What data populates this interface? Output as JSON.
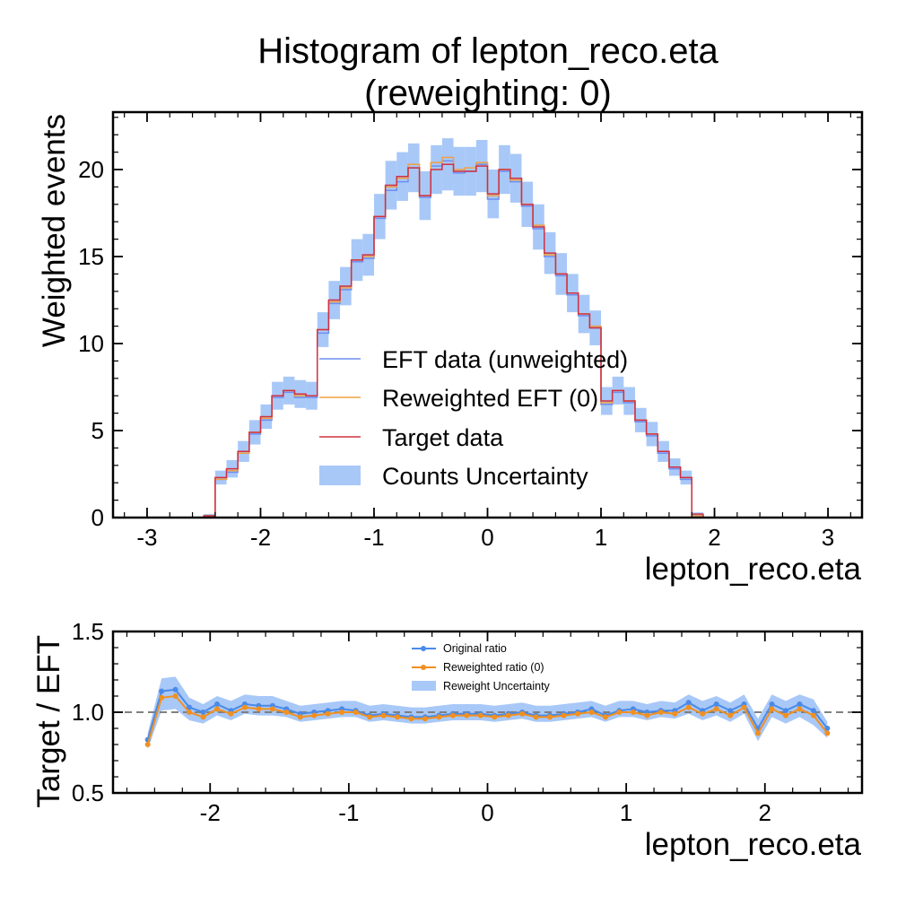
{
  "chart_data": [
    {
      "type": "histogram",
      "title": "Histogram of lepton_reco.eta",
      "subtitle": "(reweighting: 0)",
      "xlabel": "lepton_reco.eta",
      "ylabel": "Weighted events",
      "xlim": [
        -3.3,
        3.3
      ],
      "ylim": [
        0,
        23.3
      ],
      "xticks": [
        -3,
        -2,
        -1,
        0,
        1,
        2,
        3
      ],
      "yticks": [
        0,
        5,
        10,
        15,
        20
      ],
      "tick_labels_x": [
        "-3",
        "-2",
        "-1",
        "0",
        "1",
        "2",
        "3"
      ],
      "tick_labels_y": [
        "0",
        "5",
        "10",
        "15",
        "20"
      ],
      "bin_edges": [
        -2.5,
        -2.4,
        -2.3,
        -2.2,
        -2.1,
        -2.0,
        -1.9,
        -1.8,
        -1.7,
        -1.6,
        -1.5,
        -1.4,
        -1.3,
        -1.2,
        -1.1,
        -1.0,
        -0.9,
        -0.8,
        -0.7,
        -0.6,
        -0.5,
        -0.4,
        -0.3,
        -0.2,
        -0.1,
        0.0,
        0.1,
        0.2,
        0.3,
        0.4,
        0.5,
        0.6,
        0.7,
        0.8,
        0.9,
        1.0,
        1.1,
        1.2,
        1.3,
        1.4,
        1.5,
        1.6,
        1.7,
        1.8,
        1.9,
        2.0,
        2.1,
        2.2,
        2.3,
        2.4,
        2.5
      ],
      "series": [
        {
          "name": "EFT data (unweighted)",
          "color": "#6f8ef0",
          "values": [
            0.1,
            2.2,
            2.6,
            3.7,
            4.8,
            5.6,
            6.9,
            7.2,
            6.9,
            6.9,
            10.6,
            12.3,
            13.1,
            14.7,
            14.9,
            17.2,
            18.8,
            19.3,
            20.1,
            18.4,
            20.2,
            20.5,
            19.8,
            19.9,
            20.3,
            18.3,
            19.9,
            19.3,
            17.9,
            16.6,
            15.0,
            13.9,
            12.8,
            11.6,
            10.9,
            6.5,
            7.2,
            6.6,
            5.5,
            4.7,
            3.7,
            2.8,
            2.2,
            0.1,
            0.0,
            0.0,
            0.0,
            0.0,
            0.0,
            0.0
          ]
        },
        {
          "name": "Reweighted EFT (0)",
          "color": "#f0a040",
          "values": [
            0.1,
            2.2,
            2.7,
            3.7,
            4.9,
            5.7,
            7.0,
            7.3,
            7.0,
            7.0,
            10.8,
            12.4,
            13.2,
            14.8,
            15.0,
            17.3,
            19.0,
            19.5,
            20.3,
            18.5,
            20.4,
            20.7,
            20.0,
            20.1,
            20.4,
            18.5,
            20.0,
            19.4,
            18.0,
            16.8,
            15.1,
            14.0,
            12.9,
            11.7,
            11.0,
            6.6,
            7.3,
            6.7,
            5.6,
            4.8,
            3.8,
            2.9,
            2.3,
            0.1,
            0.0,
            0.0,
            0.0,
            0.0,
            0.0,
            0.0
          ]
        },
        {
          "name": "Target data",
          "color": "#d03040",
          "values": [
            0.1,
            2.3,
            2.8,
            3.8,
            4.9,
            5.8,
            7.0,
            7.3,
            7.1,
            7.0,
            10.8,
            12.5,
            13.3,
            14.8,
            15.1,
            17.3,
            19.1,
            19.6,
            20.1,
            18.5,
            20.0,
            20.3,
            19.9,
            19.9,
            20.2,
            18.6,
            20.0,
            19.5,
            18.0,
            16.7,
            15.2,
            14.0,
            12.9,
            11.7,
            10.9,
            6.7,
            7.3,
            6.7,
            5.6,
            4.8,
            3.8,
            2.9,
            2.3,
            0.2,
            0.0,
            0.0,
            0.0,
            0.0,
            0.0,
            0.0
          ]
        }
      ],
      "uncertainty_band": {
        "name": "Counts Uncertainty",
        "color": "#a8c8f8",
        "half_width": [
          0.1,
          0.4,
          0.5,
          0.6,
          0.7,
          0.7,
          0.8,
          0.8,
          0.8,
          0.8,
          1.0,
          1.1,
          1.1,
          1.2,
          1.2,
          1.3,
          1.4,
          1.4,
          1.4,
          1.4,
          1.4,
          1.5,
          1.4,
          1.4,
          1.5,
          1.4,
          1.4,
          1.4,
          1.3,
          1.3,
          1.2,
          1.2,
          1.1,
          1.1,
          1.0,
          0.8,
          0.8,
          0.8,
          0.7,
          0.7,
          0.6,
          0.5,
          0.4,
          0.1,
          0.0,
          0.0,
          0.0,
          0.0,
          0.0,
          0.0
        ]
      },
      "legend": [
        "EFT data (unweighted)",
        "Reweighted EFT (0)",
        "Target data",
        "Counts Uncertainty"
      ],
      "legend_placement": "center-bottom"
    },
    {
      "type": "line",
      "title": "",
      "xlabel": "lepton_reco.eta",
      "ylabel": "Target / EFT",
      "xlim": [
        -2.7,
        2.7
      ],
      "ylim": [
        0.5,
        1.5
      ],
      "xticks": [
        -2,
        -1,
        0,
        1,
        2
      ],
      "yticks": [
        0.5,
        1.0,
        1.5
      ],
      "tick_labels_x": [
        "-2",
        "-1",
        "0",
        "1",
        "2"
      ],
      "tick_labels_y": [
        "0.5",
        "1.0",
        "1.5"
      ],
      "reference_line": 1.0,
      "x": [
        -2.45,
        -2.35,
        -2.25,
        -2.15,
        -2.05,
        -1.95,
        -1.85,
        -1.75,
        -1.65,
        -1.55,
        -1.45,
        -1.35,
        -1.25,
        -1.15,
        -1.05,
        -0.95,
        -0.85,
        -0.75,
        -0.65,
        -0.55,
        -0.45,
        -0.35,
        -0.25,
        -0.15,
        -0.05,
        0.05,
        0.15,
        0.25,
        0.35,
        0.45,
        0.55,
        0.65,
        0.75,
        0.85,
        0.95,
        1.05,
        1.15,
        1.25,
        1.35,
        1.45,
        1.55,
        1.65,
        1.75,
        1.85,
        1.95,
        2.05,
        2.15,
        2.25,
        2.35,
        2.45
      ],
      "series": [
        {
          "name": "Original ratio",
          "color": "#4a8ae8",
          "values": [
            0.83,
            1.13,
            1.14,
            1.03,
            1.0,
            1.05,
            1.01,
            1.05,
            1.04,
            1.04,
            1.02,
            0.99,
            1.0,
            1.01,
            1.02,
            1.01,
            0.98,
            0.99,
            0.98,
            0.97,
            0.97,
            0.98,
            0.99,
            0.99,
            0.99,
            0.98,
            0.99,
            1.0,
            0.98,
            0.98,
            0.99,
            1.0,
            1.02,
            0.98,
            1.01,
            1.02,
            1.0,
            1.01,
            1.01,
            1.06,
            1.01,
            1.05,
            1.01,
            1.05,
            0.9,
            1.05,
            1.01,
            1.05,
            1.01,
            0.9
          ]
        },
        {
          "name": "Reweighted ratio (0)",
          "color": "#f09020",
          "values": [
            0.8,
            1.09,
            1.1,
            1.0,
            0.97,
            1.02,
            0.99,
            1.03,
            1.02,
            1.02,
            1.0,
            0.97,
            0.98,
            0.99,
            1.0,
            1.0,
            0.97,
            0.98,
            0.97,
            0.96,
            0.96,
            0.97,
            0.98,
            0.98,
            0.98,
            0.97,
            0.98,
            0.99,
            0.97,
            0.97,
            0.98,
            0.99,
            1.0,
            0.97,
            1.0,
            1.0,
            0.98,
            1.0,
            0.99,
            1.03,
            0.99,
            1.02,
            0.98,
            1.03,
            0.87,
            1.02,
            0.98,
            1.02,
            0.98,
            0.87
          ]
        }
      ],
      "uncertainty_band": {
        "name": "Reweight Uncertainty",
        "color": "#a8c8f8",
        "half_width": [
          0.05,
          0.1,
          0.1,
          0.07,
          0.06,
          0.06,
          0.06,
          0.06,
          0.06,
          0.06,
          0.05,
          0.05,
          0.05,
          0.05,
          0.05,
          0.05,
          0.05,
          0.05,
          0.05,
          0.05,
          0.05,
          0.05,
          0.05,
          0.05,
          0.05,
          0.05,
          0.05,
          0.05,
          0.05,
          0.05,
          0.05,
          0.05,
          0.05,
          0.05,
          0.05,
          0.05,
          0.05,
          0.05,
          0.05,
          0.06,
          0.06,
          0.06,
          0.06,
          0.06,
          0.07,
          0.07,
          0.07,
          0.07,
          0.08,
          0.05
        ]
      },
      "legend": [
        "Original ratio",
        "Reweighted ratio (0)",
        "Reweight Uncertainty"
      ],
      "legend_placement": "top-center"
    }
  ]
}
